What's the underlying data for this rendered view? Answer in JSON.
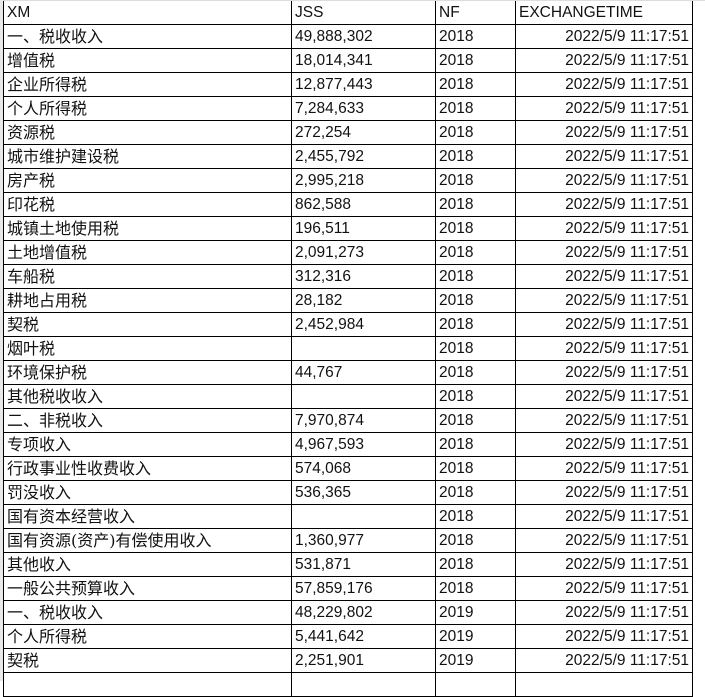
{
  "headers": {
    "xm": "XM",
    "jss": "JSS",
    "nf": "NF",
    "exchangetime": "EXCHANGETIME"
  },
  "rows": [
    {
      "xm": "一、税收收入",
      "jss": "49,888,302",
      "nf": "2018",
      "exchangetime": "2022/5/9 11:17:51"
    },
    {
      "xm": "增值税",
      "jss": "18,014,341",
      "nf": "2018",
      "exchangetime": "2022/5/9 11:17:51"
    },
    {
      "xm": "企业所得税",
      "jss": "12,877,443",
      "nf": "2018",
      "exchangetime": "2022/5/9 11:17:51"
    },
    {
      "xm": "个人所得税",
      "jss": "7,284,633",
      "nf": "2018",
      "exchangetime": "2022/5/9 11:17:51"
    },
    {
      "xm": "资源税",
      "jss": "272,254",
      "nf": "2018",
      "exchangetime": "2022/5/9 11:17:51"
    },
    {
      "xm": "城市维护建设税",
      "jss": "2,455,792",
      "nf": "2018",
      "exchangetime": "2022/5/9 11:17:51"
    },
    {
      "xm": "房产税",
      "jss": "2,995,218",
      "nf": "2018",
      "exchangetime": "2022/5/9 11:17:51"
    },
    {
      "xm": "印花税",
      "jss": "862,588",
      "nf": "2018",
      "exchangetime": "2022/5/9 11:17:51"
    },
    {
      "xm": "城镇土地使用税",
      "jss": "196,511",
      "nf": "2018",
      "exchangetime": "2022/5/9 11:17:51"
    },
    {
      "xm": "土地增值税",
      "jss": "2,091,273",
      "nf": "2018",
      "exchangetime": "2022/5/9 11:17:51"
    },
    {
      "xm": "车船税",
      "jss": "312,316",
      "nf": "2018",
      "exchangetime": "2022/5/9 11:17:51"
    },
    {
      "xm": "耕地占用税",
      "jss": "28,182",
      "nf": "2018",
      "exchangetime": "2022/5/9 11:17:51"
    },
    {
      "xm": "契税",
      "jss": "2,452,984",
      "nf": "2018",
      "exchangetime": "2022/5/9 11:17:51"
    },
    {
      "xm": "烟叶税",
      "jss": "",
      "nf": "2018",
      "exchangetime": "2022/5/9 11:17:51"
    },
    {
      "xm": "环境保护税",
      "jss": "44,767",
      "nf": "2018",
      "exchangetime": "2022/5/9 11:17:51"
    },
    {
      "xm": "其他税收收入",
      "jss": "",
      "nf": "2018",
      "exchangetime": "2022/5/9 11:17:51"
    },
    {
      "xm": "二、非税收入",
      "jss": "7,970,874",
      "nf": "2018",
      "exchangetime": "2022/5/9 11:17:51"
    },
    {
      "xm": "专项收入",
      "jss": "4,967,593",
      "nf": "2018",
      "exchangetime": "2022/5/9 11:17:51"
    },
    {
      "xm": "行政事业性收费收入",
      "jss": "574,068",
      "nf": "2018",
      "exchangetime": "2022/5/9 11:17:51"
    },
    {
      "xm": "罚没收入",
      "jss": "536,365",
      "nf": "2018",
      "exchangetime": "2022/5/9 11:17:51"
    },
    {
      "xm": "国有资本经营收入",
      "jss": "",
      "nf": "2018",
      "exchangetime": "2022/5/9 11:17:51"
    },
    {
      "xm": "国有资源(资产)有偿使用收入",
      "jss": "1,360,977",
      "nf": "2018",
      "exchangetime": "2022/5/9 11:17:51"
    },
    {
      "xm": "其他收入",
      "jss": "531,871",
      "nf": "2018",
      "exchangetime": "2022/5/9 11:17:51"
    },
    {
      "xm": "一般公共预算收入",
      "jss": "57,859,176",
      "nf": "2018",
      "exchangetime": "2022/5/9 11:17:51"
    },
    {
      "xm": "一、税收收入",
      "jss": "48,229,802",
      "nf": "2019",
      "exchangetime": "2022/5/9 11:17:51"
    },
    {
      "xm": "个人所得税",
      "jss": "5,441,642",
      "nf": "2019",
      "exchangetime": "2022/5/9 11:17:51"
    },
    {
      "xm": "契税",
      "jss": "2,251,901",
      "nf": "2019",
      "exchangetime": "2022/5/9 11:17:51"
    }
  ]
}
